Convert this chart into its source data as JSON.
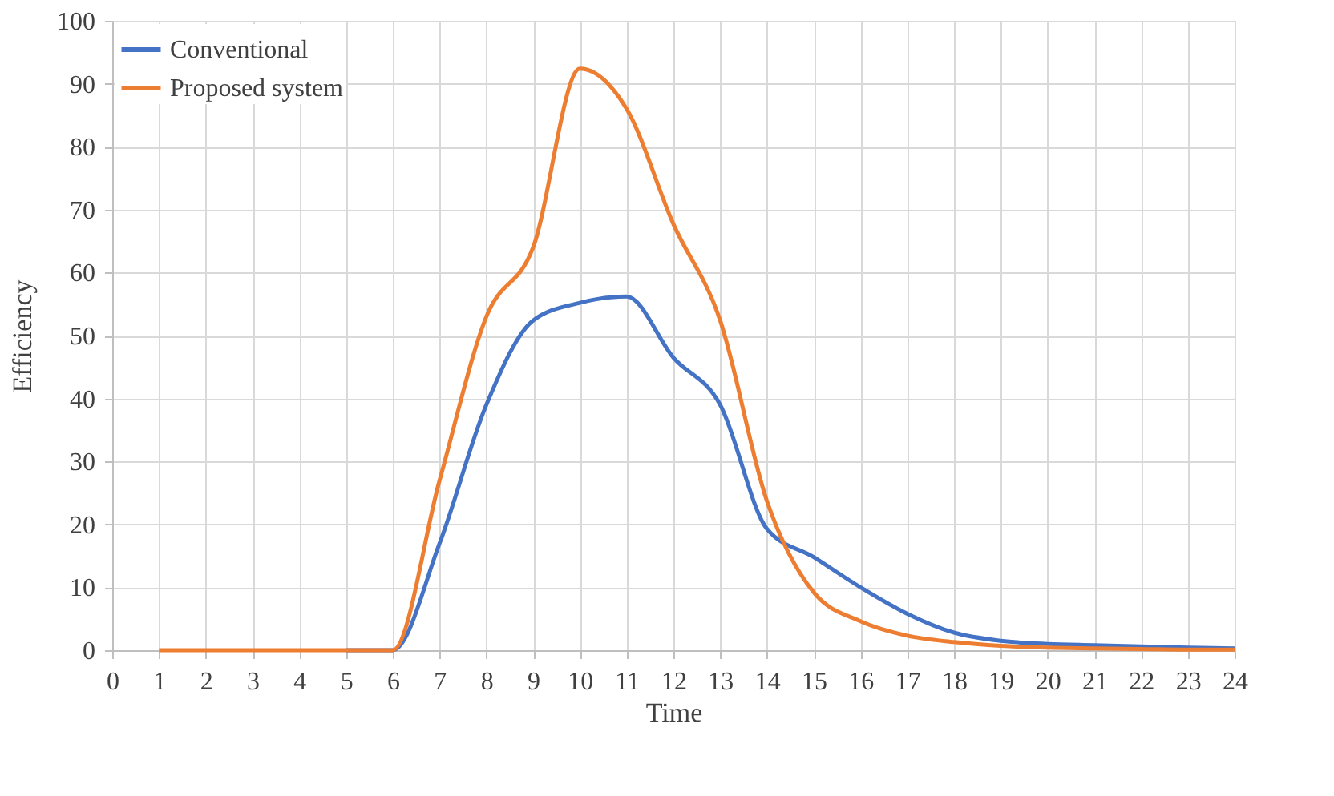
{
  "chart_data": {
    "type": "line",
    "xlabel": "Time",
    "ylabel": "Efficiency",
    "x": [
      1,
      2,
      3,
      4,
      5,
      6,
      7,
      8,
      9,
      10,
      11,
      12,
      13,
      14,
      15,
      16,
      17,
      18,
      19,
      20,
      21,
      22,
      23,
      24
    ],
    "series": [
      {
        "name": "Conventional",
        "color": "#4472c4",
        "values": [
          null,
          null,
          null,
          null,
          0,
          0,
          17,
          39,
          52.4,
          55.2,
          56.2,
          46.5,
          39,
          19.3,
          14.8,
          10,
          5.8,
          2.8,
          1.5,
          1,
          0.8,
          0.6,
          0.4,
          0.3
        ]
      },
      {
        "name": "Proposed system",
        "color": "#ed7d31",
        "values": [
          0,
          0,
          0,
          0,
          0,
          0,
          27,
          53,
          64,
          92.4,
          86,
          67.7,
          52.4,
          23.7,
          9.2,
          4.6,
          2.3,
          1.3,
          0.7,
          0.4,
          0.3,
          0.2,
          0.1,
          0.1
        ]
      }
    ],
    "xlim": [
      0,
      24
    ],
    "xticks": [
      0,
      1,
      2,
      3,
      4,
      5,
      6,
      7,
      8,
      9,
      10,
      11,
      12,
      13,
      14,
      15,
      16,
      17,
      18,
      19,
      20,
      21,
      22,
      23,
      24
    ],
    "ylim": [
      0,
      100
    ],
    "yticks": [
      0,
      10,
      20,
      30,
      40,
      50,
      60,
      70,
      80,
      90,
      100
    ],
    "grid": true,
    "legend": "top left",
    "marker": "none",
    "line_style": "solid"
  }
}
